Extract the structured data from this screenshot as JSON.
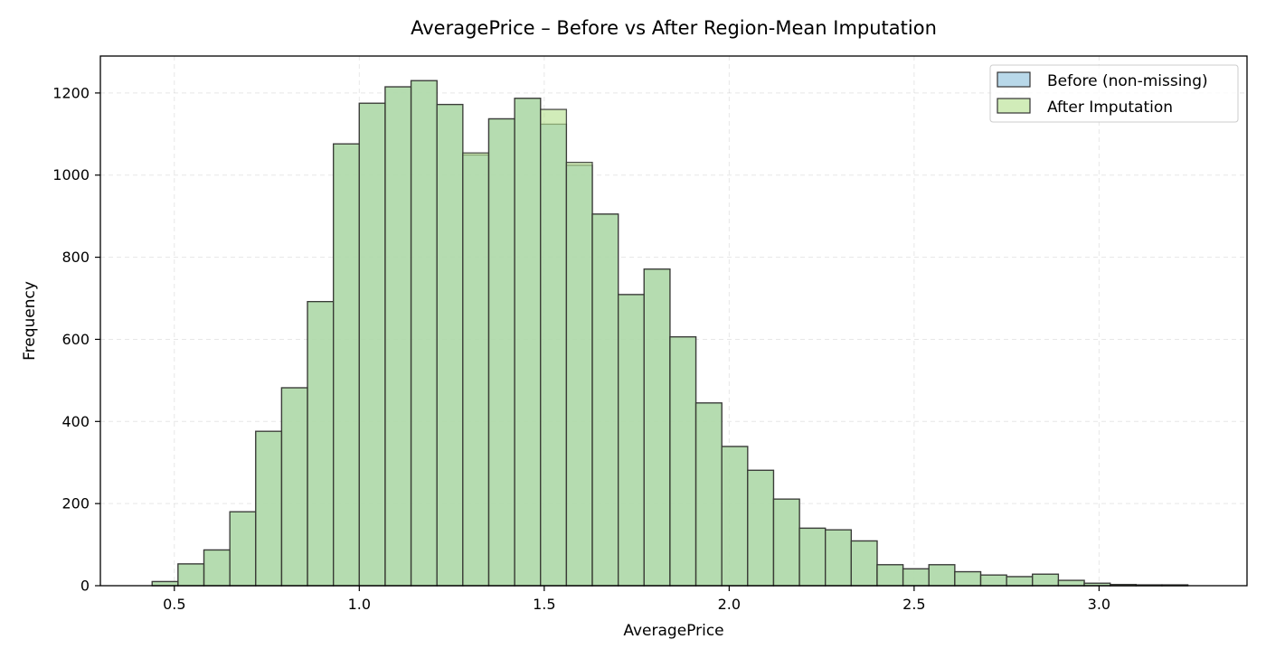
{
  "chart_data": {
    "type": "bar",
    "title": "AveragePrice – Before vs After Region-Mean Imputation",
    "xlabel": "AveragePrice",
    "ylabel": "Frequency",
    "xlim": [
      0.3,
      3.4
    ],
    "ylim": [
      0,
      1290
    ],
    "xticks": [
      0.5,
      1.0,
      1.5,
      2.0,
      2.5,
      3.0
    ],
    "xtick_labels": [
      "0.5",
      "1.0",
      "1.5",
      "2.0",
      "2.5",
      "3.0"
    ],
    "yticks": [
      0,
      200,
      400,
      600,
      800,
      1000,
      1200
    ],
    "ytick_labels": [
      "0",
      "200",
      "400",
      "600",
      "800",
      "1000",
      "1200"
    ],
    "grid": true,
    "legend_position": "top-right",
    "bin_start": 0.44,
    "bin_width": 0.07,
    "series": [
      {
        "name": "Before (non-missing)",
        "color": "#a6cee3",
        "values": [
          10,
          53,
          87,
          180,
          376,
          482,
          692,
          1076,
          1175,
          1215,
          1230,
          1172,
          1049,
          1137,
          1187,
          1124,
          1024,
          905,
          709,
          771,
          606,
          445,
          339,
          281,
          211,
          140,
          136,
          109,
          51,
          41,
          51,
          34,
          26,
          22,
          28,
          13,
          6,
          3,
          2,
          2
        ]
      },
      {
        "name": "After Imputation",
        "color": "#b2df8a",
        "values": [
          10,
          53,
          87,
          180,
          376,
          482,
          692,
          1076,
          1175,
          1215,
          1230,
          1172,
          1054,
          1137,
          1187,
          1160,
          1031,
          905,
          709,
          771,
          606,
          445,
          339,
          281,
          211,
          140,
          136,
          109,
          51,
          41,
          51,
          34,
          26,
          22,
          28,
          13,
          6,
          3,
          2,
          2
        ]
      }
    ]
  }
}
